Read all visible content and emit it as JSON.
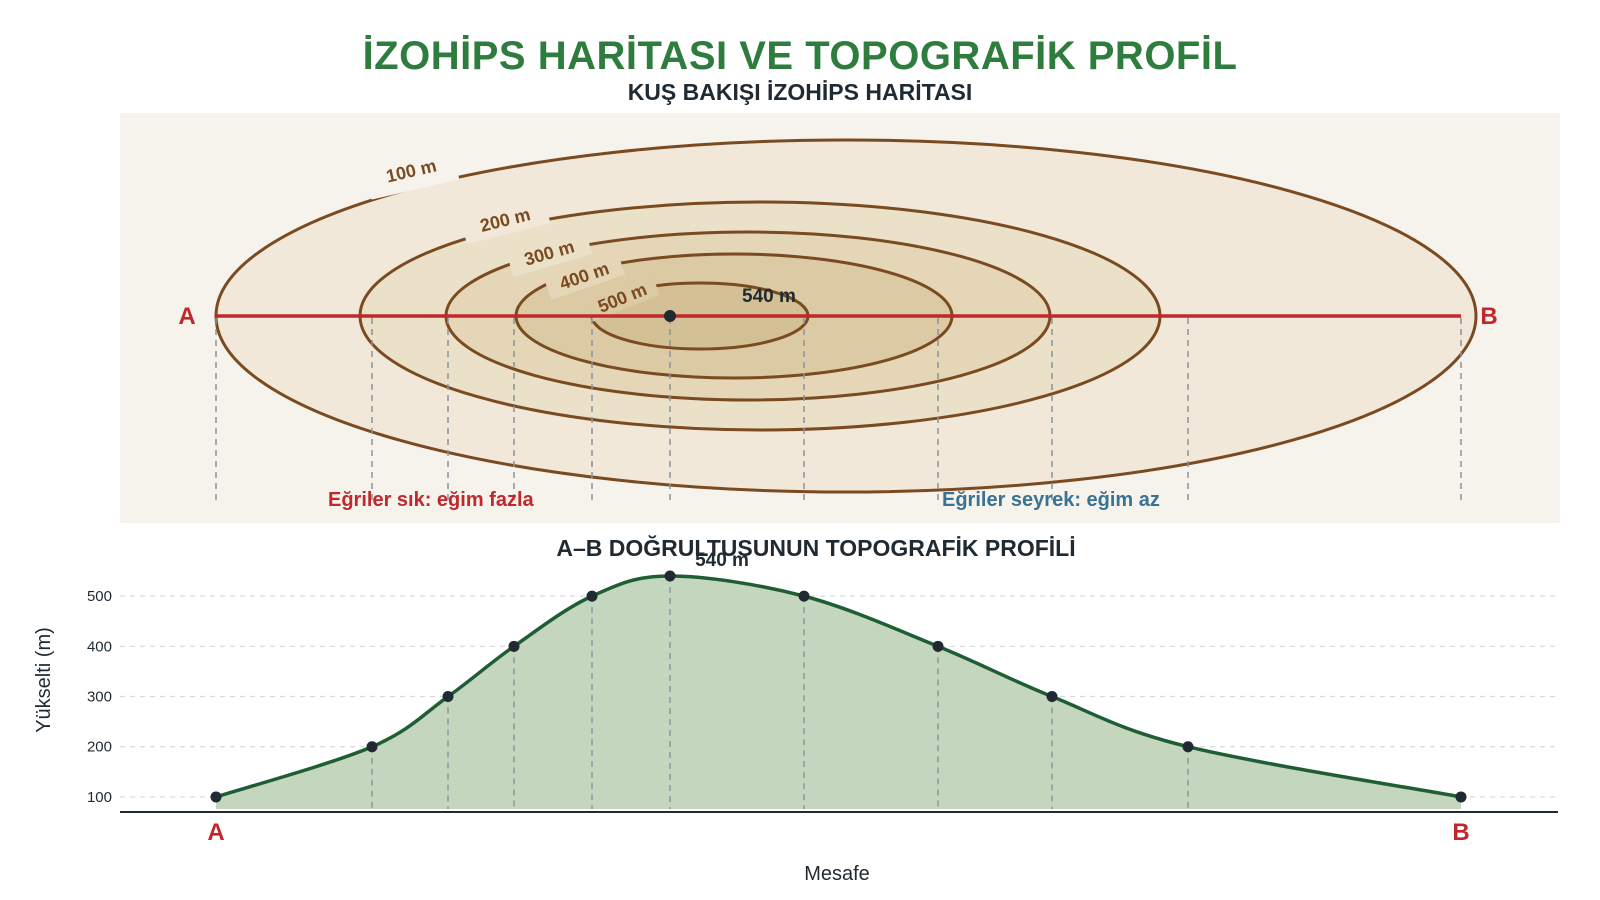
{
  "title": "İZOHİPS HARİTASI VE TOPOGRAFİK PROFİL",
  "map": {
    "title": "KUŞ BAKIŞI İZOHİPS HARİTASI",
    "point_a": "A",
    "point_b": "B",
    "peak_label": "540 m",
    "contour_labels": [
      "100 m",
      "200 m",
      "300 m",
      "400 m",
      "500 m"
    ],
    "note_steep": "Eğriler sık: eğim fazla",
    "note_gentle": "Eğriler seyrek: eğim az",
    "colors": {
      "contour": "#7a4a20",
      "section_line": "#c0282d",
      "steep_note": "#c0282d",
      "gentle_note": "#3a7294"
    }
  },
  "profile": {
    "title": "A–B DOĞRULTUSUNUN TOPOGRAFİK PROFİLİ",
    "peak_label": "540 m",
    "ylabel": "Yükselti (m)",
    "xlabel": "Mesafe",
    "start_label": "A",
    "end_label": "B",
    "colors": {
      "line": "#1f5e35",
      "fill": "#c4d6bd"
    }
  },
  "chart_data": {
    "type": "area",
    "title": "A–B DOĞRULTUSUNUN TOPOGRAFİK PROFİLİ",
    "xlabel": "Mesafe",
    "ylabel": "Yükselti (m)",
    "x_labels": [
      "A",
      "B"
    ],
    "y_ticks": [
      100,
      200,
      300,
      400,
      500
    ],
    "ylim": [
      70,
      560
    ],
    "grid": true,
    "points": [
      {
        "elevation": 100
      },
      {
        "elevation": 200
      },
      {
        "elevation": 300
      },
      {
        "elevation": 400
      },
      {
        "elevation": 500
      },
      {
        "elevation": 540,
        "label": "540 m"
      },
      {
        "elevation": 500
      },
      {
        "elevation": 400
      },
      {
        "elevation": 300
      },
      {
        "elevation": 200
      },
      {
        "elevation": 100
      }
    ]
  }
}
